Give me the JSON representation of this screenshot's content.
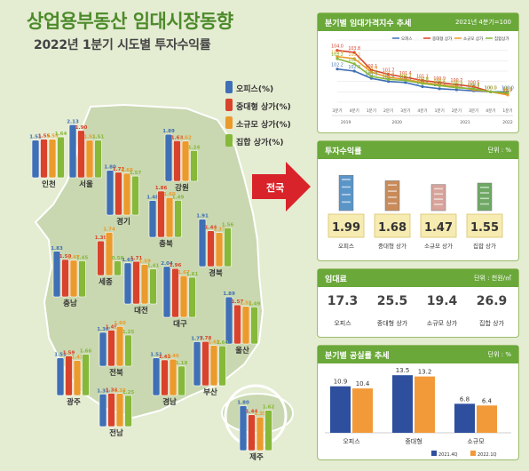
{
  "title": "상업용부동산 임대시장동향",
  "subtitle": "2022년 1분기 시도별 투자수익률",
  "legend": [
    {
      "label": "오피스(%)",
      "color": "#3f6fb5"
    },
    {
      "label": "중대형 상가(%)",
      "color": "#d9432b"
    },
    {
      "label": "소규모 상가(%)",
      "color": "#eb9a2c"
    },
    {
      "label": "집합 상가(%)",
      "color": "#86b83a"
    }
  ],
  "nationwide_label": "전국",
  "chart_data": [
    {
      "type": "bar",
      "series": [
        {
          "name": "오피스(%)",
          "color": "#3f6fb5"
        },
        {
          "name": "중대형 상가(%)",
          "color": "#d9432b"
        },
        {
          "name": "소규모 상가(%)",
          "color": "#eb9a2c"
        },
        {
          "name": "집합 상가(%)",
          "color": "#86b83a"
        }
      ],
      "regions": [
        {
          "name": "인천",
          "values": [
            1.51,
            1.55,
            1.55,
            1.64
          ]
        },
        {
          "name": "서울",
          "values": [
            2.13,
            1.9,
            1.51,
            1.51
          ]
        },
        {
          "name": "경기",
          "values": [
            1.8,
            1.72,
            1.68,
            1.57
          ]
        },
        {
          "name": "강원",
          "values": [
            1.89,
            1.63,
            1.62,
            1.24
          ]
        },
        {
          "name": "충북",
          "values": [
            1.48,
            1.86,
            1.6,
            1.49
          ]
        },
        {
          "name": "세종",
          "values": [
            null,
            1.39,
            1.74,
            0.58
          ]
        },
        {
          "name": "충남",
          "values": [
            1.83,
            1.5,
            1.47,
            1.45
          ]
        },
        {
          "name": "대전",
          "values": [
            1.65,
            1.71,
            1.59,
            1.41
          ]
        },
        {
          "name": "경북",
          "values": [
            1.91,
            1.44,
            1.37,
            1.56
          ]
        },
        {
          "name": "대구",
          "values": [
            2.04,
            1.96,
            1.67,
            1.61
          ]
        },
        {
          "name": "울산",
          "values": [
            1.89,
            1.57,
            1.51,
            1.49
          ]
        },
        {
          "name": "전북",
          "values": [
            1.36,
            1.45,
            1.6,
            1.25
          ]
        },
        {
          "name": "경남",
          "values": [
            1.51,
            1.43,
            1.46,
            1.18
          ]
        },
        {
          "name": "부산",
          "values": [
            1.77,
            1.78,
            1.62,
            1.6
          ]
        },
        {
          "name": "광주",
          "values": [
            1.51,
            1.59,
            1.41,
            1.66
          ]
        },
        {
          "name": "전남",
          "values": [
            1.31,
            1.34,
            1.33,
            1.25
          ]
        },
        {
          "name": "제주",
          "values": [
            1.8,
            1.44,
            1.35,
            1.62
          ]
        }
      ]
    },
    {
      "type": "line",
      "title": "분기별 임대가격지수 추세",
      "note": "2021년 4분기=100",
      "x": [
        "3분기",
        "4분기",
        "1분기",
        "2분기",
        "3분기",
        "4분기",
        "1분기",
        "2분기",
        "3분기",
        "4분기",
        "1분기"
      ],
      "years": [
        {
          "label": "2019",
          "start": 0,
          "end": 1
        },
        {
          "label": "2020",
          "start": 2,
          "end": 5
        },
        {
          "label": "2021",
          "start": 6,
          "end": 9
        },
        {
          "label": "2022",
          "start": 10,
          "end": 10
        }
      ],
      "ylim": [
        99,
        105
      ],
      "series": [
        {
          "name": "오피스",
          "color": "#3f6fb5",
          "values": [
            102.2,
            102.0,
            101.3,
            101.0,
            100.9,
            100.5,
            100.3,
            100.2,
            100.1,
            100.0,
            100.0
          ]
        },
        {
          "name": "중대형 상가",
          "color": "#d9432b",
          "values": [
            104.0,
            103.8,
            102.1,
            101.7,
            101.4,
            101.1,
            100.9,
            100.7,
            100.5,
            100.0,
            99.8
          ]
        },
        {
          "name": "소규모 상가",
          "color": "#eb9a2c",
          "values": [
            103.4,
            103.2,
            101.9,
            101.4,
            101.2,
            100.9,
            100.7,
            100.5,
            100.2,
            100.0,
            99.7
          ]
        },
        {
          "name": "집합상가",
          "color": "#86b83a",
          "values": [
            103.2,
            102.7,
            101.5,
            101.2,
            101.1,
            100.8,
            100.6,
            100.4,
            100.3,
            100.0,
            99.9
          ]
        }
      ]
    },
    {
      "type": "bar",
      "title": "투자수익률",
      "unit": "단위 : %",
      "categories": [
        "오피스",
        "중대형 상가",
        "소규모 상가",
        "집합 상가"
      ],
      "values": [
        1.99,
        1.68,
        1.47,
        1.55
      ]
    },
    {
      "type": "table",
      "title": "임대료",
      "unit": "단위 : 천원/㎡",
      "categories": [
        "오피스",
        "중대형 상가",
        "소규모 상가",
        "집합 상가"
      ],
      "values": [
        17.3,
        25.5,
        19.4,
        26.9
      ]
    },
    {
      "type": "bar",
      "title": "분기별 공실률 추세",
      "unit": "단위 : %",
      "categories": [
        "오피스",
        "중대형",
        "소규모"
      ],
      "series": [
        {
          "name": "2021.4Q",
          "color": "#2d4f9e",
          "values": [
            10.9,
            13.5,
            6.8
          ]
        },
        {
          "name": "2022.1Q",
          "color": "#f29a3a",
          "values": [
            10.4,
            13.2,
            6.4
          ]
        }
      ],
      "ylim": [
        0,
        15
      ]
    }
  ]
}
